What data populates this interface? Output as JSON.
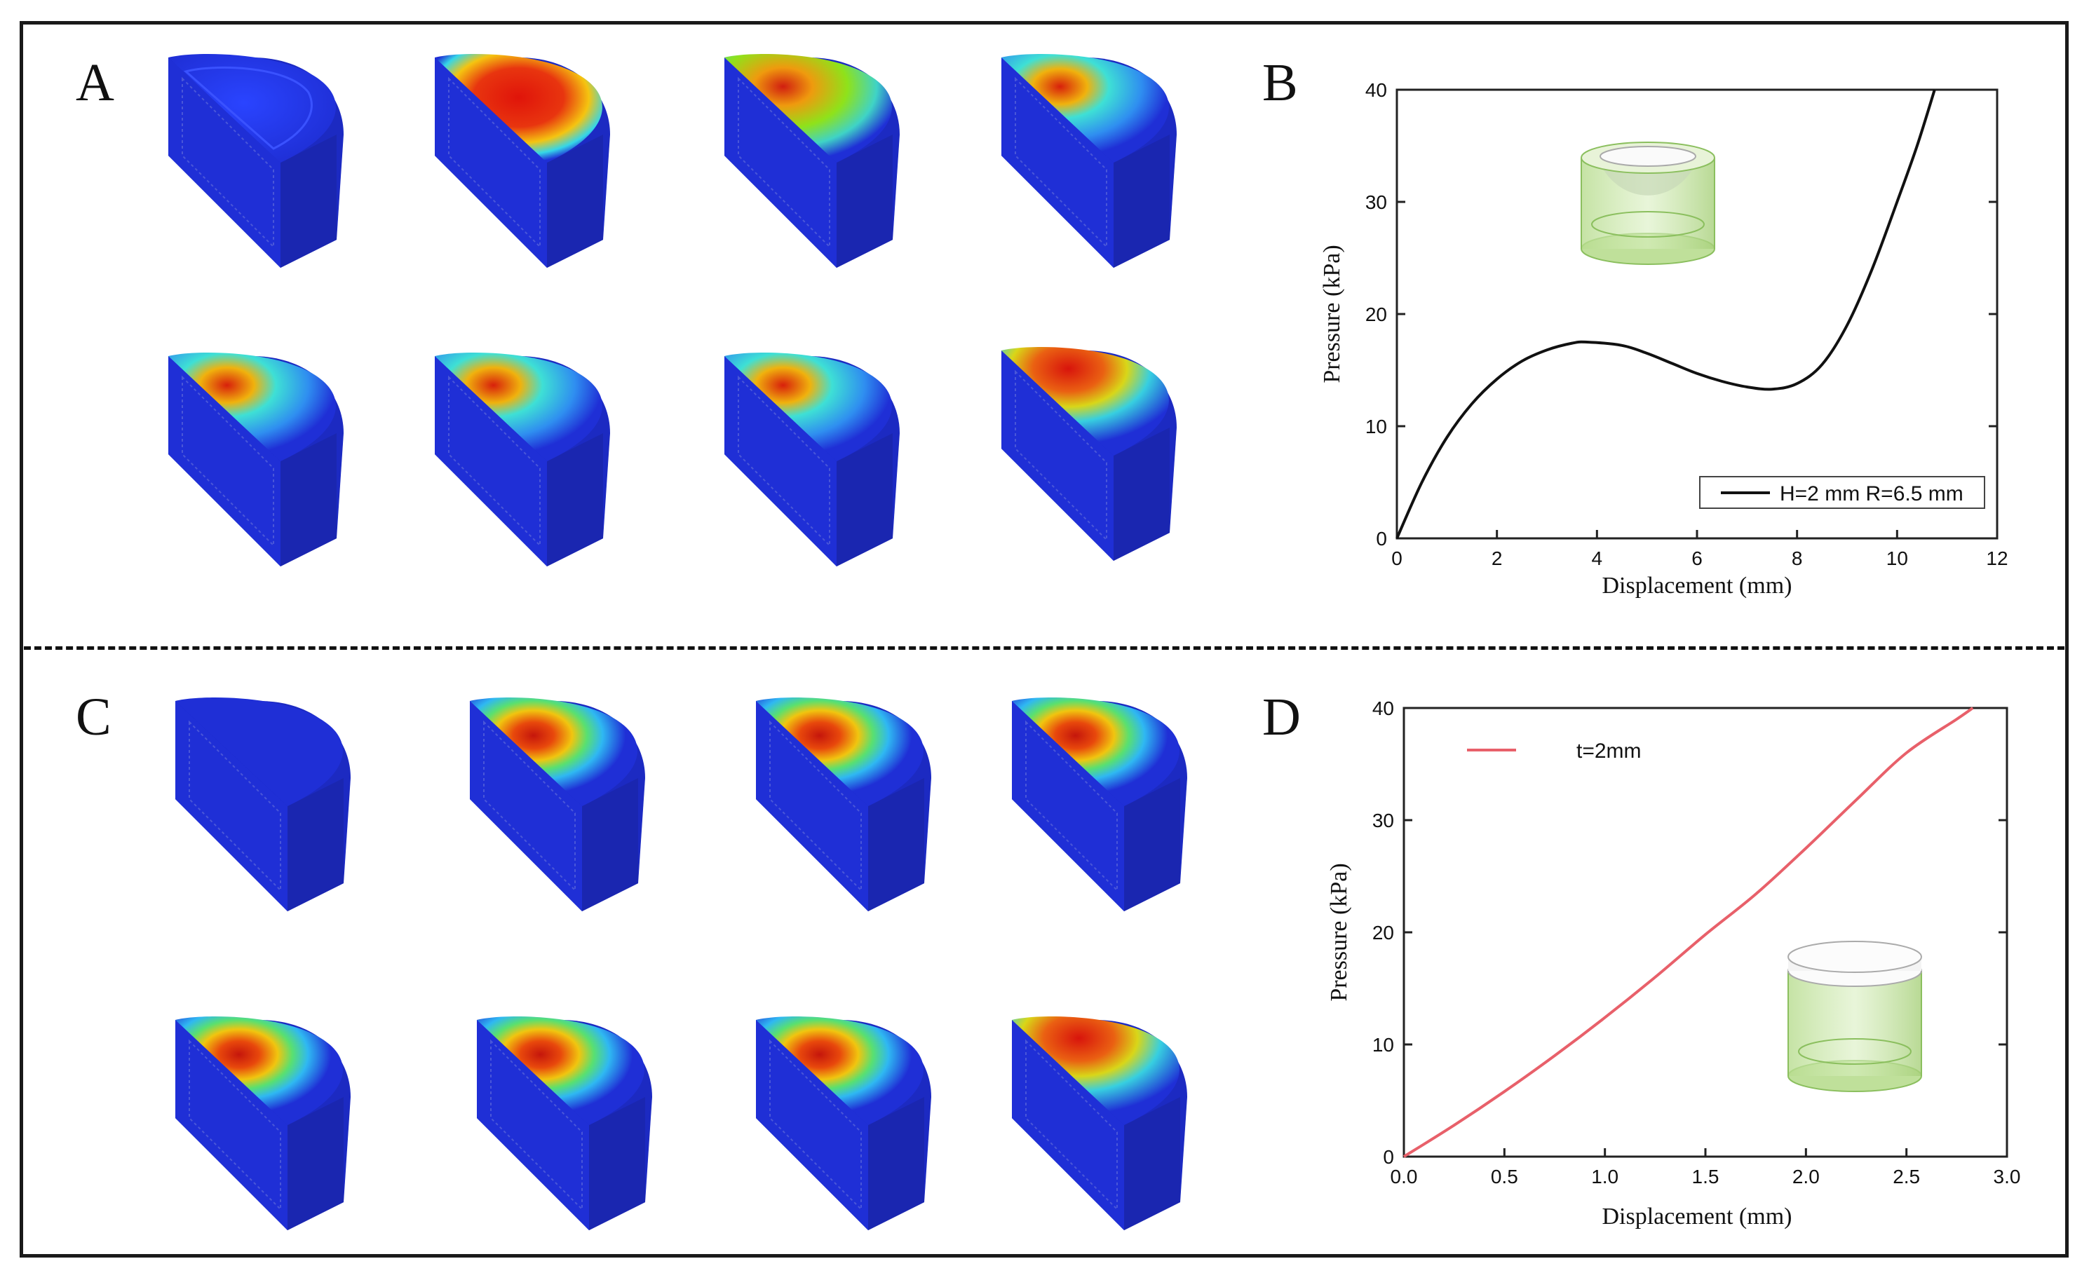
{
  "panels": {
    "a_label": "A",
    "b_label": "B",
    "c_label": "C",
    "d_label": "D"
  },
  "colors": {
    "fem_base": "#1f2fd6",
    "contour_low": "#2a44ff",
    "contour_high": "#e21c0e",
    "curve_b": "#111111",
    "curve_d": "#e8606a",
    "inset_green": "#9fd36a"
  },
  "chart_data": [
    {
      "type": "line",
      "panel": "B",
      "xlabel": "Displacement (mm)",
      "ylabel": "Pressure (kPa)",
      "xlim": [
        0,
        12
      ],
      "ylim": [
        0,
        40
      ],
      "xticks": [
        "0",
        "2",
        "4",
        "6",
        "8",
        "10",
        "12"
      ],
      "yticks": [
        "0",
        "10",
        "20",
        "30",
        "40"
      ],
      "legend": "bottom-right",
      "series": [
        {
          "name": "H=2 mm R=6.5 mm",
          "x": [
            0,
            0.5,
            1,
            1.5,
            2,
            2.5,
            3,
            3.5,
            3.8,
            4.5,
            5,
            5.5,
            6,
            6.5,
            7,
            7.5,
            8,
            8.5,
            9,
            9.5,
            10,
            10.4,
            10.75
          ],
          "y": [
            0,
            5,
            9,
            12,
            14.2,
            15.8,
            16.8,
            17.4,
            17.5,
            17.2,
            16.5,
            15.6,
            14.7,
            14,
            13.5,
            13.3,
            13.8,
            15.5,
            19,
            24,
            30,
            35,
            40
          ]
        }
      ]
    },
    {
      "type": "line",
      "panel": "D",
      "xlabel": "Displacement (mm)",
      "ylabel": "Pressure (kPa)",
      "xlim": [
        0,
        3
      ],
      "ylim": [
        0,
        40
      ],
      "xticks": [
        "0.0",
        "0.5",
        "1.0",
        "1.5",
        "2.0",
        "2.5",
        "3.0"
      ],
      "yticks": [
        "0",
        "10",
        "20",
        "30",
        "40"
      ],
      "legend": "top-left",
      "series": [
        {
          "name": "t=2mm",
          "x": [
            0,
            0.25,
            0.5,
            0.75,
            1.0,
            1.25,
            1.5,
            1.75,
            2.0,
            2.25,
            2.5,
            2.75,
            2.83
          ],
          "y": [
            0,
            2.8,
            5.8,
            9.0,
            12.4,
            16.0,
            19.8,
            23.4,
            27.5,
            31.8,
            36.0,
            39.0,
            40
          ]
        }
      ]
    }
  ]
}
